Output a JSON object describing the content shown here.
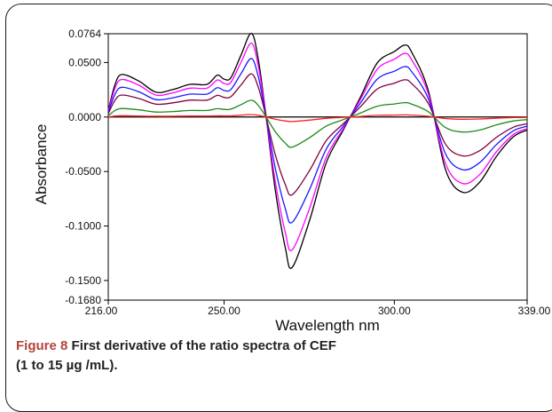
{
  "caption": {
    "label": "Figure 8",
    "text": " First derivative of the ratio spectra of CEF",
    "line2": "(1 to 15 µg /mL)."
  },
  "chart_data": {
    "type": "line",
    "title": "",
    "xlabel": "Wavelength nm",
    "ylabel": "Absorbance",
    "xlim": [
      216,
      339
    ],
    "ylim": [
      -0.168,
      0.0764
    ],
    "x_ticks": [
      "216.00",
      "250.00",
      "300.00",
      "339.00"
    ],
    "y_ticks": [
      "0.0764",
      "0.0500",
      "0.0000",
      "-0.0500",
      "-0.1000",
      "-0.1500",
      "-0.1680"
    ],
    "grid": false,
    "zero_line": true,
    "x": [
      216,
      218,
      220,
      225,
      230,
      235,
      240,
      245,
      248,
      250,
      252,
      255,
      258,
      260,
      262,
      265,
      268,
      270,
      275,
      280,
      285,
      290,
      295,
      300,
      303,
      305,
      310,
      315,
      320,
      325,
      330,
      335,
      339
    ],
    "base_shape": [
      0.1,
      0.5,
      0.65,
      0.55,
      0.38,
      0.42,
      0.5,
      0.5,
      0.64,
      0.58,
      0.6,
      0.95,
      1.28,
      0.9,
      0.15,
      -1.1,
      -2.0,
      -2.3,
      -1.6,
      -0.7,
      -0.2,
      0.3,
      0.83,
      1.0,
      1.1,
      1.0,
      0.4,
      -0.8,
      -1.15,
      -1.0,
      -0.6,
      -0.3,
      -0.2
    ],
    "series": [
      {
        "color": "#000000",
        "scale": 0.06
      },
      {
        "color": "#ff00ff",
        "scale": 0.053
      },
      {
        "color": "#1a1aff",
        "scale": 0.042
      },
      {
        "color": "#800040",
        "scale": 0.031
      },
      {
        "color": "#1a8a1a",
        "scale": 0.012
      },
      {
        "color": "#ff2020",
        "scale": 0.0018
      }
    ]
  }
}
